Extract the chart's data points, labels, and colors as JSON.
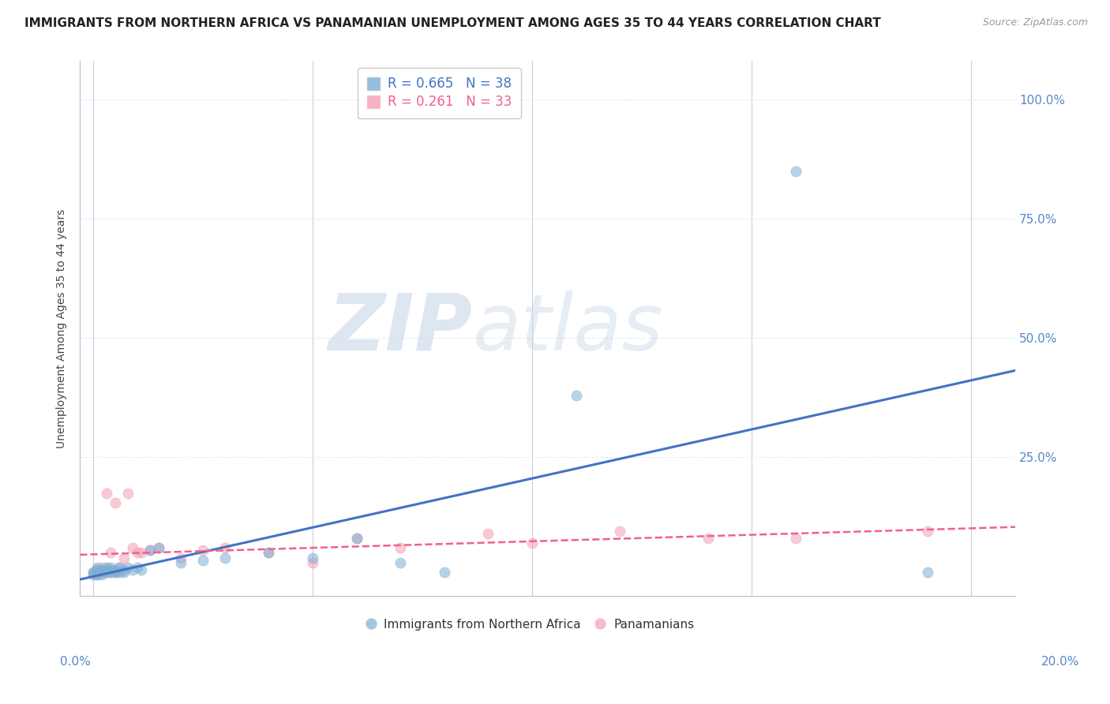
{
  "title": "IMMIGRANTS FROM NORTHERN AFRICA VS PANAMANIAN UNEMPLOYMENT AMONG AGES 35 TO 44 YEARS CORRELATION CHART",
  "source": "Source: ZipAtlas.com",
  "xlabel_edge_left": "0.0%",
  "xlabel_edge_right": "20.0%",
  "ylabel": "Unemployment Among Ages 35 to 44 years",
  "ylabel_ticks_labels": [
    "100.0%",
    "75.0%",
    "50.0%",
    "25.0%"
  ],
  "ylabel_tick_vals": [
    1.0,
    0.75,
    0.5,
    0.25
  ],
  "xlim": [
    -0.003,
    0.21
  ],
  "ylim": [
    -0.04,
    1.08
  ],
  "blue_R": 0.665,
  "blue_N": 38,
  "pink_R": 0.261,
  "pink_N": 33,
  "blue_color": "#7BAFD4",
  "pink_color": "#F4A0B0",
  "blue_line_color": "#4472C4",
  "pink_line_color": "#F06090",
  "legend_label_blue": "Immigrants from Northern Africa",
  "legend_label_pink": "Panamanians",
  "watermark_zip": "ZIP",
  "watermark_atlas": "atlas",
  "background_color": "#FFFFFF",
  "blue_scatter_x": [
    0.0,
    0.0,
    0.001,
    0.001,
    0.001,
    0.001,
    0.002,
    0.002,
    0.002,
    0.003,
    0.003,
    0.003,
    0.004,
    0.004,
    0.004,
    0.005,
    0.005,
    0.006,
    0.006,
    0.007,
    0.007,
    0.008,
    0.009,
    0.01,
    0.011,
    0.013,
    0.015,
    0.02,
    0.025,
    0.03,
    0.04,
    0.05,
    0.06,
    0.07,
    0.08,
    0.11,
    0.16,
    0.19
  ],
  "blue_scatter_y": [
    0.005,
    0.01,
    0.005,
    0.01,
    0.015,
    0.02,
    0.005,
    0.01,
    0.015,
    0.01,
    0.015,
    0.02,
    0.01,
    0.015,
    0.02,
    0.01,
    0.015,
    0.01,
    0.02,
    0.01,
    0.015,
    0.02,
    0.015,
    0.02,
    0.015,
    0.055,
    0.06,
    0.03,
    0.035,
    0.04,
    0.05,
    0.04,
    0.08,
    0.03,
    0.01,
    0.38,
    0.85,
    0.01
  ],
  "pink_scatter_x": [
    0.0,
    0.001,
    0.001,
    0.001,
    0.002,
    0.002,
    0.003,
    0.003,
    0.004,
    0.004,
    0.005,
    0.005,
    0.006,
    0.007,
    0.008,
    0.009,
    0.01,
    0.011,
    0.013,
    0.015,
    0.02,
    0.025,
    0.03,
    0.04,
    0.05,
    0.06,
    0.07,
    0.09,
    0.1,
    0.12,
    0.14,
    0.16,
    0.19
  ],
  "pink_scatter_y": [
    0.01,
    0.005,
    0.01,
    0.015,
    0.01,
    0.02,
    0.01,
    0.175,
    0.01,
    0.05,
    0.01,
    0.155,
    0.02,
    0.04,
    0.175,
    0.06,
    0.05,
    0.05,
    0.055,
    0.06,
    0.04,
    0.055,
    0.06,
    0.05,
    0.03,
    0.08,
    0.06,
    0.09,
    0.07,
    0.095,
    0.08,
    0.08,
    0.095
  ],
  "grid_color": "#DDEEFF",
  "title_fontsize": 11,
  "axis_label_fontsize": 10,
  "tick_fontsize": 11,
  "source_fontsize": 9
}
